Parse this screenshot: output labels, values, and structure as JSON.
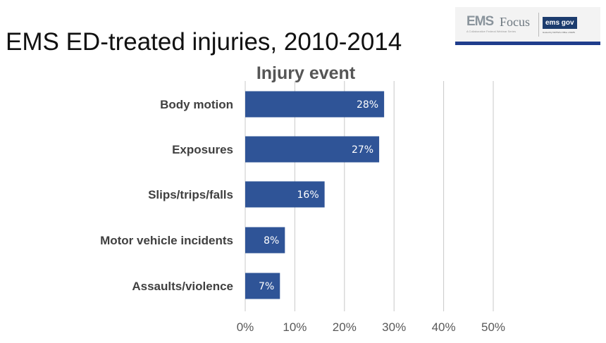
{
  "slide_title": "EMS ED-treated injuries, 2010-2014",
  "logo": {
    "ems": "EMS",
    "focus": "Focus",
    "subtitle": "A Collaborative Federal Webinar Series",
    "gov": "ems gov",
    "gov_subtitle": "Hosted by NHTSA's Office of EMS"
  },
  "chart_data": {
    "type": "bar",
    "orientation": "horizontal",
    "title": "Injury event",
    "categories": [
      "Body motion",
      "Exposures",
      "Slips/trips/falls",
      "Motor vehicle incidents",
      "Assaults/violence"
    ],
    "values": [
      28,
      27,
      16,
      8,
      7
    ],
    "data_labels": [
      "28%",
      "27%",
      "16%",
      "8%",
      "7%"
    ],
    "xlim": [
      0,
      50
    ],
    "xticks": [
      "0%",
      "10%",
      "20%",
      "30%",
      "40%",
      "50%"
    ],
    "grid": true,
    "bar_color": "#2f5497"
  }
}
